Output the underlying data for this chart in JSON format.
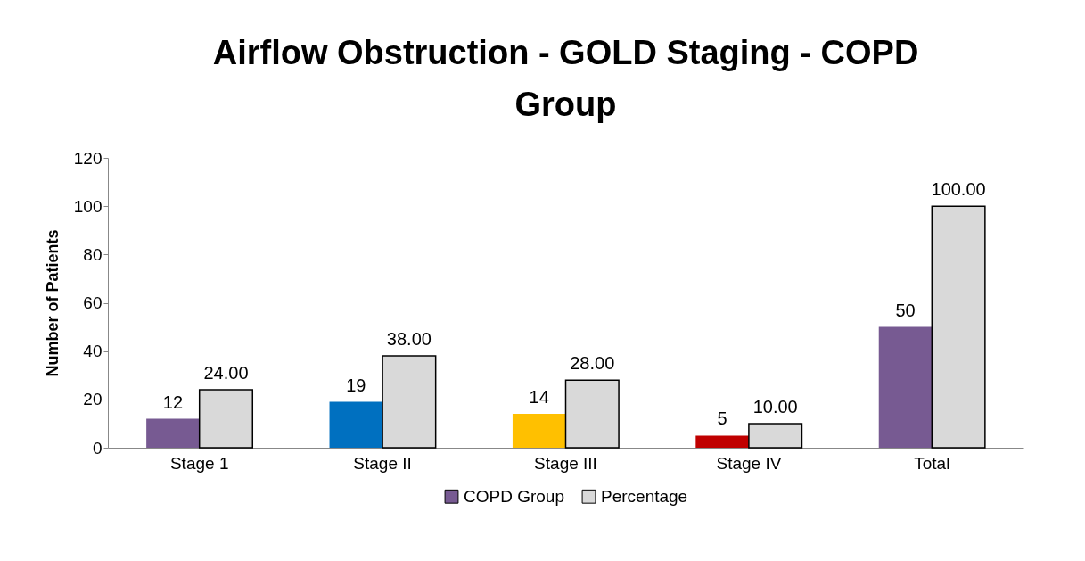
{
  "chart_data": {
    "type": "bar",
    "title": "Airflow Obstruction - GOLD Staging - COPD Group",
    "ylabel": "Number of Patients",
    "categories": [
      "Stage 1",
      "Stage II",
      "Stage III",
      "Stage IV",
      "Total"
    ],
    "series": [
      {
        "name": "COPD Group",
        "color": "#775a92",
        "colors": [
          "#775a92",
          "#0070c0",
          "#ffc000",
          "#c00000",
          "#775a92"
        ],
        "values": [
          12,
          19,
          14,
          5,
          50
        ],
        "value_labels": [
          "12",
          "19",
          "14",
          "5",
          "50"
        ]
      },
      {
        "name": "Percentage",
        "color": "#d9d9d9",
        "values": [
          24,
          38,
          28,
          10,
          100
        ],
        "value_labels": [
          "24.00",
          "38.00",
          "28.00",
          "10.00",
          "100.00"
        ]
      }
    ],
    "ylim": [
      0,
      120
    ],
    "yticks": [
      0,
      20,
      40,
      60,
      80,
      100,
      120
    ],
    "grid": false,
    "legend": "bottom"
  }
}
